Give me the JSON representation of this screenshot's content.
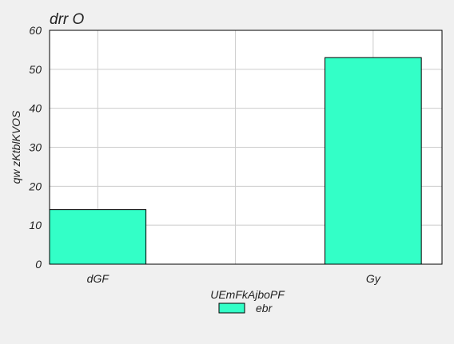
{
  "chart_data": {
    "type": "bar",
    "title": "drr O",
    "xlabel": "UEmFkAjboPF",
    "ylabel": "qw zKtblKVOS",
    "categories": [
      "dGF",
      "",
      "Gy"
    ],
    "series": [
      {
        "name": "ebr",
        "values": [
          14,
          null,
          53
        ],
        "color": "#33ffc7"
      }
    ],
    "ylim": [
      0,
      60
    ],
    "yticks": [
      0,
      10,
      20,
      30,
      40,
      50,
      60
    ],
    "grid": true,
    "legend_position": "bottom-center",
    "colors": {
      "background": "#f0f0f0",
      "plot_background": "#ffffff",
      "grid": "#cccccc",
      "bar_edge": "#000000"
    }
  }
}
